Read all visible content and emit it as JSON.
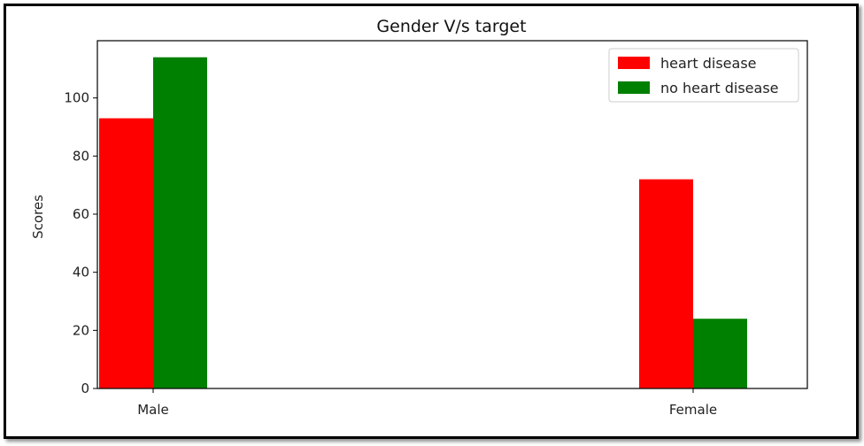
{
  "chart_data": {
    "type": "bar",
    "title": "Gender V/s target",
    "xlabel": "",
    "ylabel": "Scores",
    "categories": [
      "Male",
      "Female"
    ],
    "series": [
      {
        "name": "heart disease",
        "color": "#ff0000",
        "values": [
          93,
          72
        ]
      },
      {
        "name": "no heart disease",
        "color": "#008000",
        "values": [
          114,
          24
        ]
      }
    ],
    "yticks": [
      0,
      20,
      40,
      60,
      80,
      100
    ],
    "ylim": [
      0,
      119.7
    ],
    "grid": false,
    "legend": "top-right"
  }
}
